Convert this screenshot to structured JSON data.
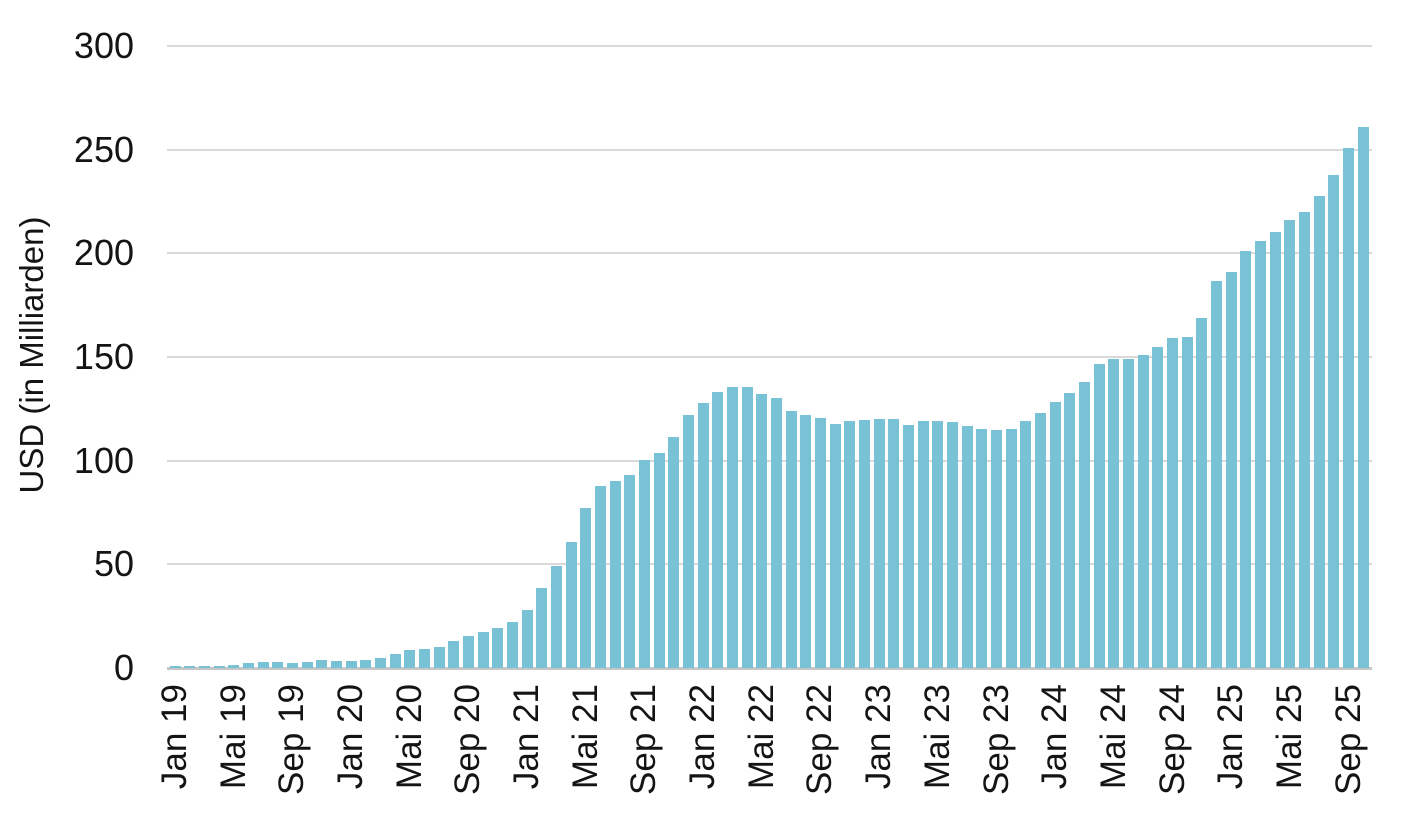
{
  "chart_data": {
    "type": "bar",
    "title": "",
    "xlabel": "",
    "ylabel": "USD (in Milliarden)",
    "ylim": [
      0,
      300
    ],
    "y_ticks": [
      0,
      50,
      100,
      150,
      200,
      250,
      300
    ],
    "grid": "horizontal",
    "legend": "none",
    "bar_color": "#79C1D4",
    "x_tick_label_every": 4,
    "x_tick_labels_shown": [
      "Jan 19",
      "Mai 19",
      "Sep 19",
      "Jan 20",
      "Mai 20",
      "Sep 20",
      "Jan 21",
      "Mai 21",
      "Sep 21",
      "Jan 22",
      "Mai 22",
      "Sep 22",
      "Jan 23",
      "Mai 23",
      "Sep 23",
      "Jan 24",
      "Mai 24",
      "Sep 24",
      "Jan 25",
      "Mai 25",
      "Sep 25"
    ],
    "categories": [
      "Jan 19",
      "Feb 19",
      "Mär 19",
      "Apr 19",
      "Mai 19",
      "Jun 19",
      "Jul 19",
      "Aug 19",
      "Sep 19",
      "Okt 19",
      "Nov 19",
      "Dez 19",
      "Jan 20",
      "Feb 20",
      "Mär 20",
      "Apr 20",
      "Mai 20",
      "Jun 20",
      "Jul 20",
      "Aug 20",
      "Sep 20",
      "Okt 20",
      "Nov 20",
      "Dez 20",
      "Jan 21",
      "Feb 21",
      "Mär 21",
      "Apr 21",
      "Mai 21",
      "Jun 21",
      "Jul 21",
      "Aug 21",
      "Sep 21",
      "Okt 21",
      "Nov 21",
      "Dez 21",
      "Jan 22",
      "Feb 22",
      "Mär 22",
      "Apr 22",
      "Mai 22",
      "Jun 22",
      "Jul 22",
      "Aug 22",
      "Sep 22",
      "Okt 22",
      "Nov 22",
      "Dez 22",
      "Jan 23",
      "Feb 23",
      "Mär 23",
      "Apr 23",
      "Mai 23",
      "Jun 23",
      "Jul 23",
      "Aug 23",
      "Sep 23",
      "Okt 23",
      "Nov 23",
      "Dez 23",
      "Jan 24",
      "Feb 24",
      "Mär 24",
      "Apr 24",
      "Mai 24",
      "Jun 24",
      "Jul 24",
      "Aug 24",
      "Sep 24",
      "Okt 24",
      "Nov 24",
      "Dez 24",
      "Jan 25",
      "Feb 25",
      "Mär 25",
      "Apr 25",
      "Mai 25",
      "Jun 25",
      "Jul 25",
      "Aug 25",
      "Sep 25",
      "Okt 25"
    ],
    "values": [
      0.8,
      0.9,
      1.0,
      1.2,
      1.5,
      2.5,
      3.0,
      2.8,
      2.5,
      3.0,
      3.8,
      3.5,
      3.5,
      3.9,
      4.7,
      6.8,
      8.7,
      9.2,
      10,
      13,
      15.5,
      17.5,
      19.5,
      22,
      28,
      38.5,
      49,
      61,
      77,
      88,
      90,
      93,
      100.5,
      103.5,
      111.5,
      122,
      128,
      133,
      135.5,
      135.5,
      132,
      130,
      124,
      122,
      120.5,
      117.5,
      119,
      119.5,
      120,
      120,
      117,
      119,
      119,
      118.5,
      116.5,
      115.5,
      115,
      115.5,
      119,
      123,
      128.5,
      132.5,
      138,
      146.5,
      149,
      149,
      151,
      155,
      159,
      159.5,
      169,
      186.5,
      191,
      201,
      206,
      210.5,
      216,
      220,
      227.5,
      238,
      251,
      261
    ]
  },
  "colors": {
    "bar": "#79C1D4",
    "gridline": "#D9D9D9",
    "baseline": "#C6C6C6",
    "text": "#141414",
    "background": "#FFFFFF"
  }
}
